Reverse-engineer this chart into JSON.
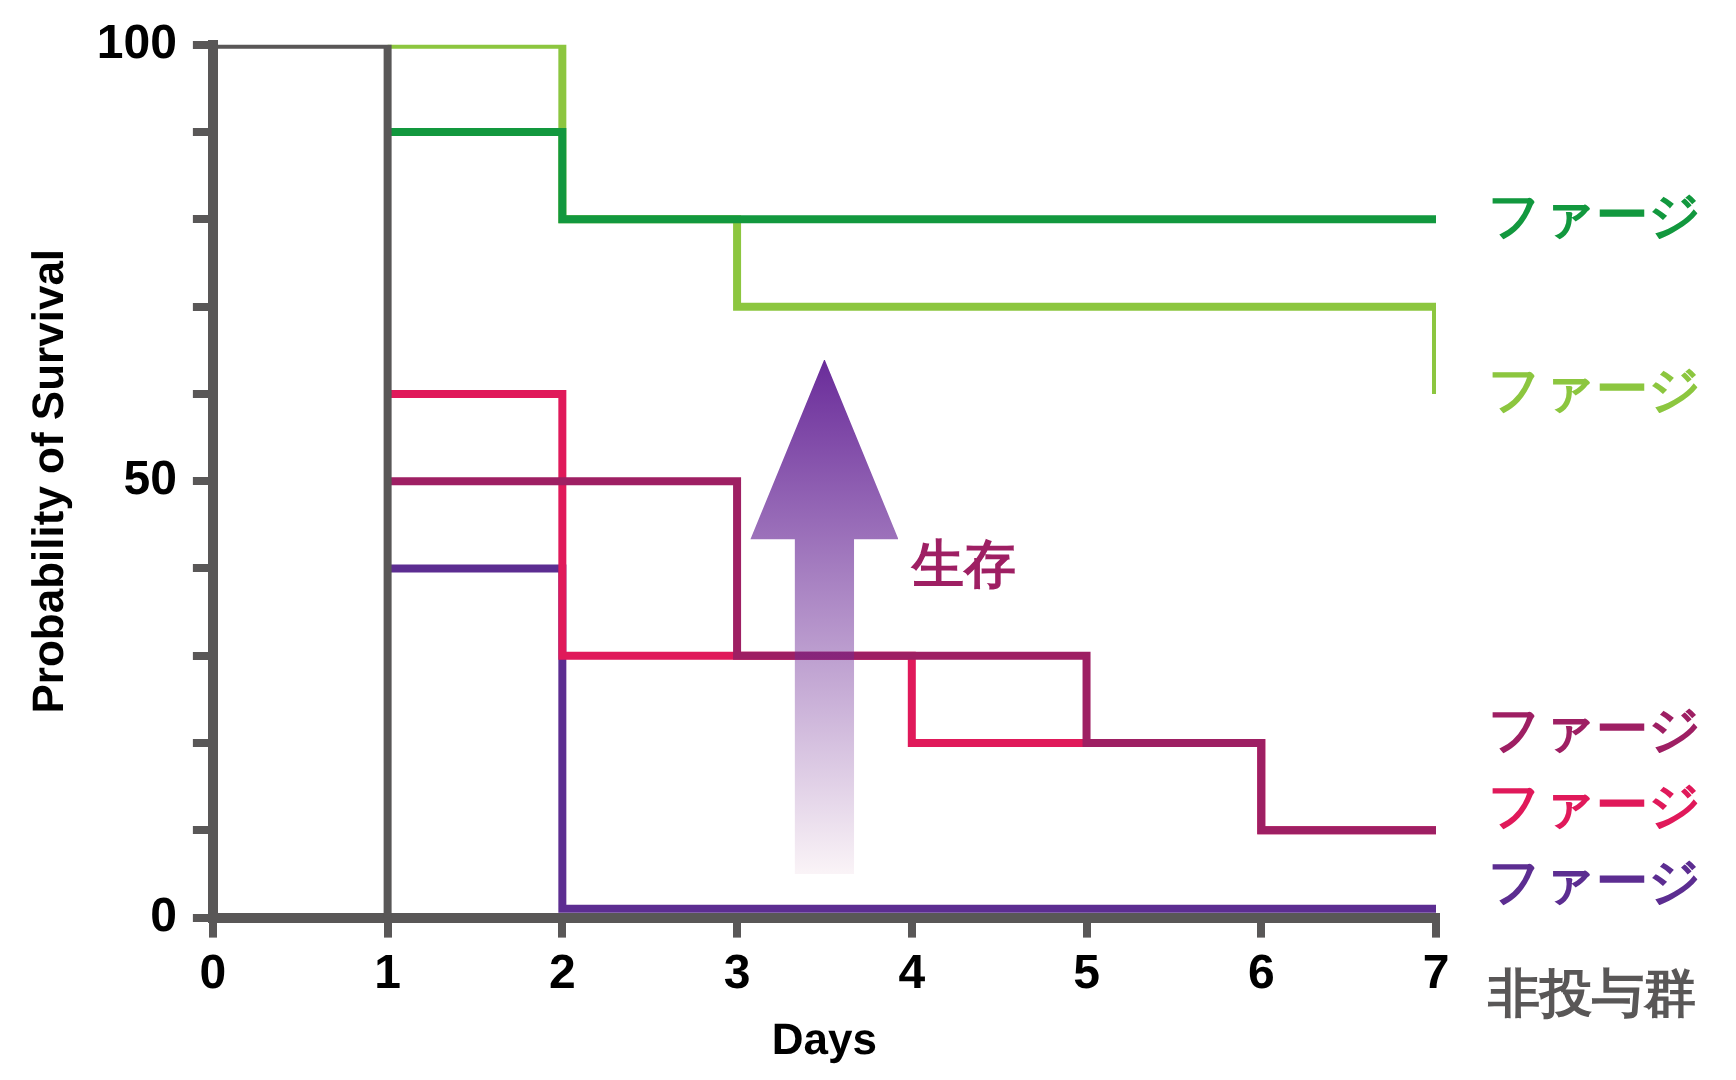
{
  "chart_data": {
    "type": "step",
    "xlabel": "Days",
    "ylabel": "Probability of Survival",
    "xlim": [
      0,
      7
    ],
    "xticks": [
      0,
      1,
      2,
      3,
      4,
      5,
      6,
      7
    ],
    "ylim": [
      0,
      100
    ],
    "yticks": [
      0,
      {
        "value": 10,
        "label": null
      },
      {
        "value": 20,
        "label": null
      },
      {
        "value": 30,
        "label": null
      },
      {
        "value": 40,
        "label": null
      },
      50,
      {
        "value": 60,
        "label": null
      },
      {
        "value": 70,
        "label": null
      },
      {
        "value": 80,
        "label": null
      },
      {
        "value": 90,
        "label": null
      },
      100
    ],
    "grid": false,
    "marker": "none",
    "line_style": "solid",
    "annotations": [
      "生存"
    ],
    "series": [
      {
        "name": "非投与群",
        "color": "#595757",
        "x": [
          0,
          1
        ],
        "values": [
          100,
          0
        ]
      },
      {
        "name": "ファージ",
        "color": "#12983e",
        "x": [
          1,
          2,
          7
        ],
        "values": [
          90,
          80,
          80
        ]
      },
      {
        "name": "ファージ",
        "color": "#8cc63f",
        "x": [
          1,
          2,
          3,
          7
        ],
        "values": [
          100,
          80,
          70,
          60
        ]
      },
      {
        "name": "ファージ",
        "color": "#9e1f63",
        "x": [
          1,
          3,
          5,
          6,
          7
        ],
        "values": [
          50,
          30,
          20,
          10,
          10
        ]
      },
      {
        "name": "ファージ",
        "color": "#e0195a",
        "x": [
          1,
          2,
          4,
          6,
          7
        ],
        "values": [
          60,
          30,
          20,
          10,
          10
        ]
      },
      {
        "name": "ファージ",
        "color": "#5c2d91",
        "x": [
          1,
          2,
          7
        ],
        "values": [
          40,
          1,
          1
        ]
      }
    ]
  }
}
